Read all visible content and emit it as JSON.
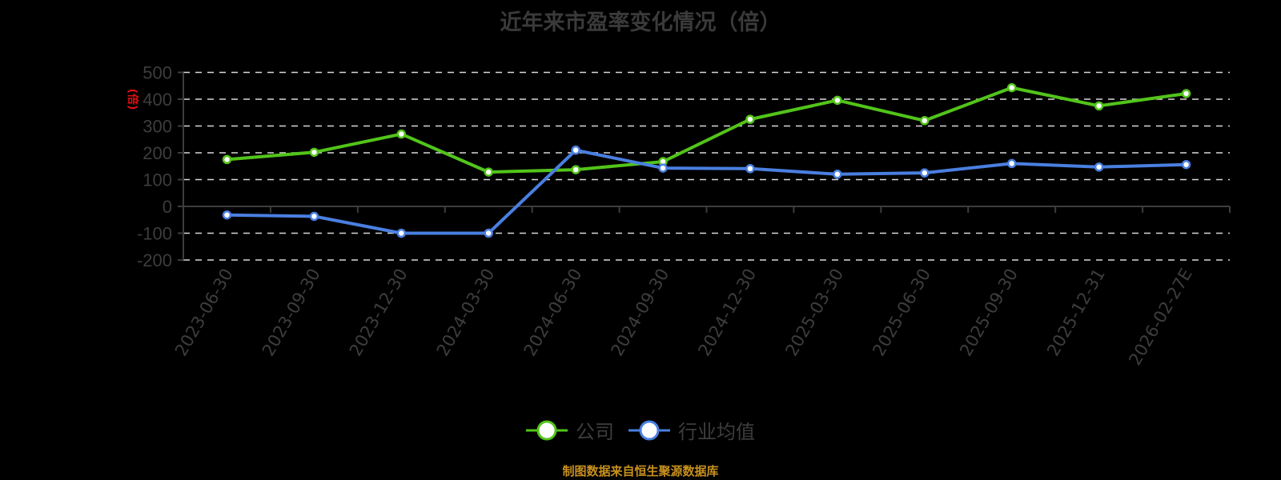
{
  "title": "近年来市盈率变化情况（倍）",
  "footer": "制图数据来自恒生聚源数据库",
  "colors": {
    "company": "#52c41a",
    "industry": "#4a7fe0",
    "grid": "#d9d9d9",
    "axis": "#3d3d3d",
    "footer": "#c8911e",
    "ylabel": "#e01010"
  },
  "legend": [
    {
      "name": "公司",
      "color": "#52c41a"
    },
    {
      "name": "行业均值",
      "color": "#4a7fe0"
    }
  ],
  "chart_data": {
    "type": "line",
    "title": "近年来市盈率变化情况（倍）",
    "xlabel": "",
    "ylabel": "(倍)",
    "ylim": [
      -200,
      500
    ],
    "yticks": [
      500,
      400,
      300,
      200,
      100,
      0,
      -100,
      -200
    ],
    "grid": true,
    "legend_position": "bottom",
    "categories": [
      "2023-06-30",
      "2023-09-30",
      "2023-12-30",
      "2024-03-30",
      "2024-06-30",
      "2024-09-30",
      "2024-12-30",
      "2025-03-30",
      "2025-06-30",
      "2025-09-30",
      "2025-12-31",
      "2026-02-27E"
    ],
    "series": [
      {
        "name": "公司",
        "values": [
          175,
          202,
          270,
          128,
          137,
          167,
          325,
          396,
          320,
          443,
          375,
          421
        ]
      },
      {
        "name": "行业均值",
        "values": [
          -32,
          -37,
          -100,
          -100,
          210,
          143,
          141,
          120,
          125,
          160,
          147,
          156
        ]
      }
    ]
  }
}
